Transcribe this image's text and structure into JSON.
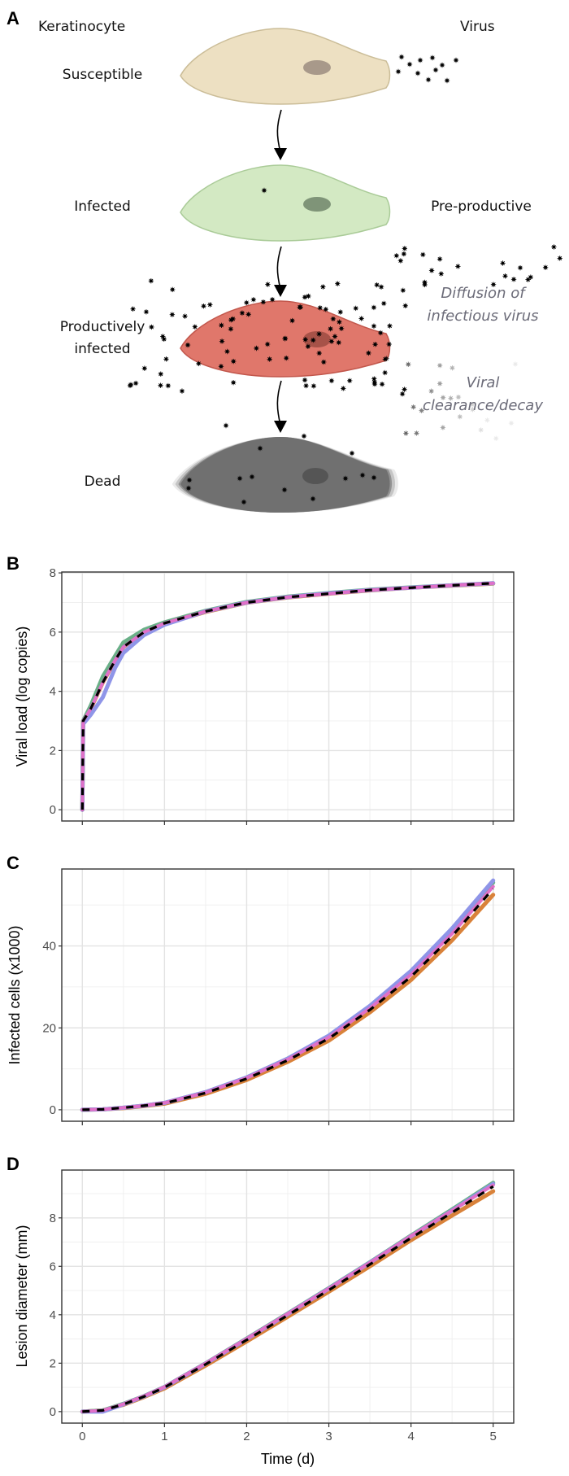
{
  "panels": {
    "a": "A",
    "b": "B",
    "c": "C",
    "d": "D"
  },
  "diagram": {
    "col_left": "Keratinocyte",
    "col_right": "Virus",
    "states": {
      "susceptible": "Susceptible",
      "infected": "Infected",
      "pre_productive": "Pre-productive",
      "productive_1": "Productively",
      "productive_2": "infected",
      "dead": "Dead"
    },
    "annotations": {
      "diffusion_1": "Diffusion of",
      "diffusion_2": "infectious virus",
      "clearance_1": "Viral",
      "clearance_2": "clearance/decay"
    },
    "colors": {
      "susceptible": "#ede0c2",
      "infected": "#d3e9c3",
      "productive": "#e0776b",
      "dead": "#707070",
      "annotation_text": "#6b6b78"
    }
  },
  "series_colors": [
    "#6ab088",
    "#8f95e8",
    "#d9823a",
    "#e070c8"
  ],
  "dashed_color": "#000000",
  "chart_data": [
    {
      "type": "line",
      "panel": "B",
      "xlabel": "",
      "ylabel": "Viral load (log copies)",
      "xlim": [
        -0.25,
        5.25
      ],
      "ylim": [
        -0.38,
        8.03
      ],
      "xticks": [
        0,
        1,
        2,
        3,
        4,
        5
      ],
      "xtick_labels_shown": false,
      "yticks": [
        0,
        2,
        4,
        6,
        8
      ],
      "grid": true,
      "x": [
        0,
        0.01,
        0.1,
        0.25,
        0.4,
        0.5,
        0.75,
        1,
        1.5,
        2,
        2.5,
        3,
        3.5,
        4,
        4.5,
        5
      ],
      "series": [
        {
          "values": [
            0,
            3.0,
            3.5,
            4.5,
            5.2,
            5.65,
            6.08,
            6.33,
            6.72,
            7.02,
            7.2,
            7.32,
            7.43,
            7.51,
            7.58,
            7.65
          ]
        },
        {
          "values": [
            0,
            2.9,
            3.2,
            3.8,
            4.8,
            5.3,
            5.9,
            6.25,
            6.7,
            7.0,
            7.18,
            7.31,
            7.42,
            7.5,
            7.58,
            7.65
          ]
        },
        {
          "values": [
            0,
            3.0,
            3.4,
            4.3,
            5.05,
            5.5,
            6.0,
            6.28,
            6.68,
            6.99,
            7.17,
            7.3,
            7.41,
            7.5,
            7.57,
            7.64
          ]
        },
        {
          "values": [
            0,
            3.0,
            3.4,
            4.3,
            5.05,
            5.5,
            6.0,
            6.3,
            6.7,
            7.0,
            7.18,
            7.3,
            7.42,
            7.5,
            7.58,
            7.65
          ]
        }
      ],
      "mean": {
        "style": "dashed",
        "values": [
          0,
          3.0,
          3.4,
          4.3,
          5.05,
          5.5,
          6.0,
          6.3,
          6.7,
          7.0,
          7.18,
          7.3,
          7.42,
          7.5,
          7.58,
          7.65
        ]
      }
    },
    {
      "type": "line",
      "panel": "C",
      "xlabel": "",
      "ylabel": "Infected cells (x1000)",
      "xlim": [
        -0.25,
        5.25
      ],
      "ylim": [
        -2.8,
        58.8
      ],
      "xticks": [
        0,
        1,
        2,
        3,
        4,
        5
      ],
      "xtick_labels_shown": false,
      "yticks": [
        0,
        20,
        40
      ],
      "grid": true,
      "x": [
        0,
        0.25,
        0.5,
        0.75,
        1,
        1.5,
        2,
        2.5,
        3,
        3.5,
        4,
        4.5,
        5
      ],
      "series": [
        {
          "values": [
            0,
            0.1,
            0.5,
            1.0,
            1.7,
            4.3,
            7.9,
            12.5,
            18.0,
            25.2,
            33.5,
            43.8,
            55.5
          ]
        },
        {
          "values": [
            0,
            0.1,
            0.5,
            1.0,
            1.7,
            4.3,
            7.9,
            12.5,
            18.1,
            25.4,
            33.9,
            44.3,
            56.0
          ]
        },
        {
          "values": [
            0,
            0.1,
            0.4,
            0.9,
            1.5,
            3.9,
            7.3,
            11.7,
            16.9,
            23.8,
            31.7,
            41.4,
            52.5
          ]
        },
        {
          "values": [
            0,
            0.1,
            0.5,
            1.0,
            1.7,
            4.2,
            7.8,
            12.3,
            17.7,
            24.8,
            33.0,
            43.0,
            54.5
          ]
        }
      ],
      "mean": {
        "style": "dashed",
        "values": [
          0,
          0.1,
          0.5,
          1.0,
          1.6,
          4.1,
          7.6,
          12.1,
          17.4,
          24.4,
          32.5,
          42.4,
          54.0
        ]
      }
    },
    {
      "type": "line",
      "panel": "D",
      "xlabel": "Time (d)",
      "ylabel": "Lesion diameter (mm)",
      "xlim": [
        -0.25,
        5.25
      ],
      "ylim": [
        -0.475,
        9.975
      ],
      "xticks": [
        0,
        1,
        2,
        3,
        4,
        5
      ],
      "xtick_labels_shown": true,
      "yticks": [
        0,
        2,
        4,
        6,
        8
      ],
      "grid": true,
      "x": [
        0,
        0.25,
        0.5,
        0.75,
        1,
        1.5,
        2,
        2.5,
        3,
        3.5,
        4,
        4.5,
        5
      ],
      "series": [
        {
          "values": [
            0,
            0.05,
            0.32,
            0.64,
            1.02,
            1.99,
            3.02,
            4.05,
            5.1,
            6.17,
            7.27,
            8.35,
            9.45
          ]
        },
        {
          "values": [
            0,
            0.0,
            0.3,
            0.63,
            1.01,
            1.98,
            3.0,
            4.03,
            5.08,
            6.15,
            7.24,
            8.3,
            9.4
          ]
        },
        {
          "values": [
            0,
            0.05,
            0.28,
            0.6,
            0.96,
            1.9,
            2.9,
            3.92,
            4.95,
            6.0,
            7.08,
            8.1,
            9.1
          ]
        },
        {
          "values": [
            0,
            0.05,
            0.31,
            0.64,
            1.02,
            1.99,
            3.01,
            4.04,
            5.08,
            6.15,
            7.25,
            8.3,
            9.35
          ]
        }
      ],
      "mean": {
        "style": "dashed",
        "values": [
          0,
          0.05,
          0.3,
          0.62,
          1.0,
          1.95,
          2.96,
          3.98,
          5.02,
          6.08,
          7.17,
          8.22,
          9.3
        ]
      }
    }
  ]
}
